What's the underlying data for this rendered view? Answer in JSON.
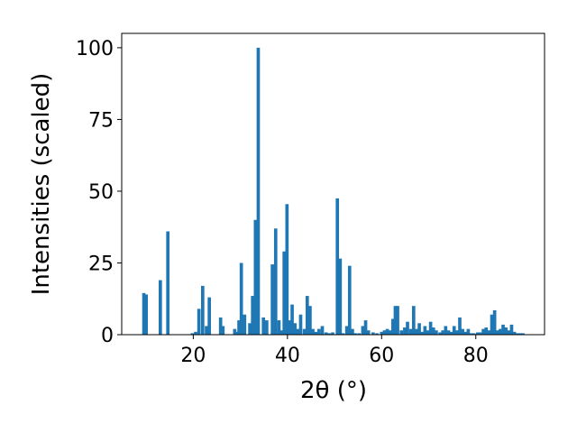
{
  "chart_data": {
    "type": "bar",
    "title": "",
    "xlabel": "2θ (°)",
    "ylabel": "Intensities (scaled)",
    "xlim": [
      4.8,
      94.6
    ],
    "ylim": [
      0,
      105
    ],
    "xticks": [
      20,
      40,
      60,
      80
    ],
    "yticks": [
      0,
      25,
      50,
      75,
      100
    ],
    "grid": false,
    "bar_color": "#1f77b4",
    "bar_width": 0.7,
    "x": [
      9.5,
      10.0,
      13.0,
      14.6,
      19.8,
      20.5,
      21.2,
      22.0,
      22.8,
      23.4,
      25.8,
      26.3,
      28.8,
      29.3,
      29.7,
      30.2,
      30.9,
      32.0,
      32.6,
      33.2,
      33.8,
      34.9,
      35.6,
      36.8,
      37.5,
      38.2,
      38.8,
      39.3,
      39.9,
      40.5,
      41.0,
      41.6,
      42.2,
      42.8,
      43.6,
      44.2,
      44.8,
      45.4,
      46.0,
      46.7,
      47.4,
      48.2,
      48.9,
      49.6,
      50.6,
      51.2,
      51.8,
      52.6,
      53.2,
      53.8,
      54.4,
      55.2,
      56.0,
      56.6,
      57.2,
      58.2,
      59.0,
      60.0,
      60.6,
      61.2,
      61.8,
      62.4,
      62.9,
      63.4,
      64.2,
      64.9,
      65.5,
      66.2,
      66.8,
      67.4,
      68.0,
      68.6,
      69.2,
      69.8,
      70.4,
      71.0,
      71.6,
      72.4,
      73.0,
      73.6,
      74.2,
      74.8,
      75.4,
      76.0,
      76.6,
      77.2,
      77.8,
      78.4,
      79.0,
      79.6,
      80.4,
      81.0,
      81.6,
      82.2,
      82.8,
      83.4,
      84.0,
      84.6,
      85.2,
      85.8,
      86.4,
      87.0,
      87.6,
      88.2,
      88.8,
      89.4,
      90.0
    ],
    "values": [
      14.5,
      14.0,
      19.0,
      36.0,
      0.5,
      1.0,
      9.0,
      17.0,
      3.0,
      13.0,
      6.0,
      3.0,
      2.0,
      1.0,
      5.0,
      25.0,
      7.0,
      4.0,
      13.5,
      40.0,
      100.0,
      6.0,
      5.0,
      24.5,
      37.0,
      5.0,
      1.5,
      29.0,
      45.5,
      5.0,
      10.5,
      4.0,
      2.0,
      7.0,
      2.0,
      13.5,
      10.0,
      2.0,
      1.0,
      2.0,
      3.0,
      0.8,
      0.5,
      0.8,
      47.5,
      26.5,
      0.5,
      3.0,
      24.0,
      2.0,
      0.5,
      0.5,
      3.0,
      5.0,
      1.5,
      0.8,
      0.5,
      1.0,
      1.5,
      2.0,
      1.5,
      5.5,
      10.0,
      10.0,
      1.5,
      2.5,
      4.5,
      2.0,
      10.0,
      2.0,
      4.0,
      1.0,
      3.0,
      1.5,
      4.5,
      2.5,
      1.5,
      0.8,
      1.5,
      3.0,
      1.5,
      1.0,
      3.0,
      1.5,
      6.0,
      2.0,
      1.0,
      2.0,
      0.5,
      0.5,
      0.8,
      0.8,
      2.0,
      2.5,
      1.5,
      7.0,
      8.5,
      1.5,
      2.0,
      3.5,
      2.5,
      1.5,
      3.5,
      1.0,
      0.5,
      0.5,
      0.5
    ]
  }
}
